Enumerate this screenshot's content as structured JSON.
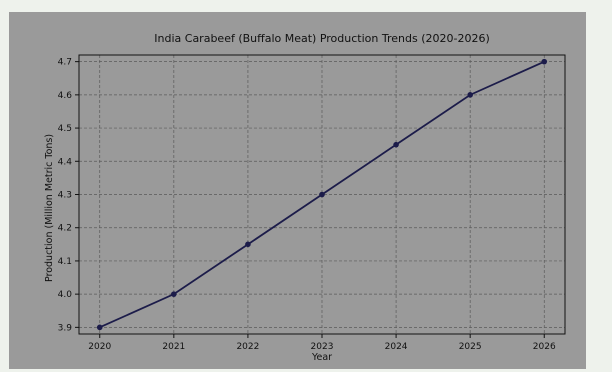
{
  "colors": {
    "page_background": "#eef2ec",
    "figure_background": "#9a9a9a",
    "line": "#1c1c4a",
    "grid": "#5a5a5a",
    "axis": "#111111"
  },
  "chart_data": {
    "type": "line",
    "title": "India Carabeef (Buffalo Meat) Production Trends (2020-2026)",
    "xlabel": "Year",
    "ylabel": "Production (Million Metric Tons)",
    "x": [
      2020,
      2021,
      2022,
      2023,
      2024,
      2025,
      2026
    ],
    "series": [
      {
        "values": [
          3.9,
          4.0,
          4.15,
          4.3,
          4.45,
          4.6,
          4.7
        ]
      }
    ],
    "xticks": [
      "2020",
      "2021",
      "2022",
      "2023",
      "2024",
      "2025",
      "2026"
    ],
    "yticks": [
      "3.9",
      "4.0",
      "4.1",
      "4.2",
      "4.3",
      "4.4",
      "4.5",
      "4.6",
      "4.7"
    ],
    "ylim": [
      3.88,
      4.72
    ],
    "grid": true,
    "grid_style": "dashed",
    "markers": true,
    "legend": "none"
  }
}
